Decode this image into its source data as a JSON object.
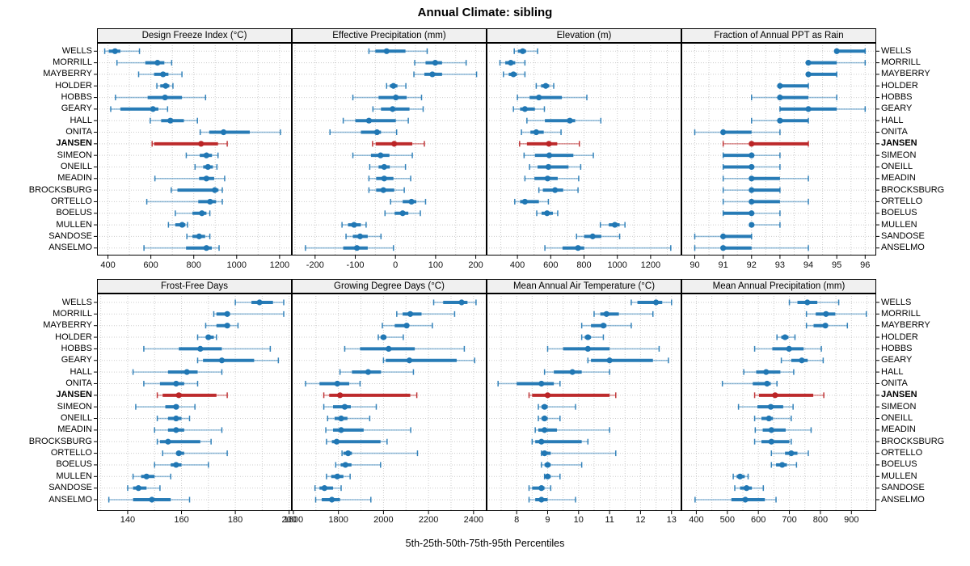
{
  "title": "Annual Climate: sibling",
  "footer": "5th-25th-50th-75th-95th Percentiles",
  "colors": {
    "normal": "#2077b4",
    "highlight": "#bb2426",
    "grid": "#cccccc",
    "strip_bg": "#f0f0f0",
    "border": "#000000"
  },
  "chart_data": {
    "type": "dot-whisker",
    "title": "Annual Climate: sibling",
    "footer": "5th-25th-50th-75th-95th Percentiles",
    "percentiles": [
      5,
      25,
      50,
      75,
      95
    ],
    "legend_position": "none",
    "grid": "dotted",
    "highlight_station": "JANSEN",
    "stations": [
      "WELLS",
      "MORRILL",
      "MAYBERRY",
      "HOLDER",
      "HOBBS",
      "GEARY",
      "HALL",
      "ONITA",
      "JANSEN",
      "SIMEON",
      "ONEILL",
      "MEADIN",
      "BROCKSBURG",
      "ORTELLO",
      "BOELUS",
      "MULLEN",
      "SANDOSE",
      "ANSELMO"
    ],
    "panels": [
      {
        "label": "Design Freeze Index (°C)",
        "grid_row": 1,
        "grid_col": 1,
        "xlim": [
          349,
          1257
        ],
        "ticks": [
          400,
          600,
          800,
          1000,
          1200
        ],
        "minor_step": 100,
        "values": [
          [
            385,
            404,
            433,
            458,
            547
          ],
          [
            442,
            574,
            631,
            663,
            697
          ],
          [
            543,
            615,
            657,
            682,
            745
          ],
          [
            628,
            644,
            669,
            686,
            703
          ],
          [
            435,
            585,
            666,
            745,
            855
          ],
          [
            413,
            458,
            610,
            635,
            678
          ],
          [
            597,
            648,
            691,
            754,
            817
          ],
          [
            830,
            872,
            939,
            1061,
            1204
          ],
          [
            606,
            615,
            834,
            913,
            956
          ],
          [
            765,
            828,
            859,
            885,
            913
          ],
          [
            806,
            844,
            866,
            889,
            908
          ],
          [
            619,
            825,
            859,
            895,
            944
          ],
          [
            695,
            724,
            898,
            915,
            933
          ],
          [
            581,
            821,
            876,
            904,
            933
          ],
          [
            714,
            794,
            838,
            859,
            875
          ],
          [
            682,
            714,
            746,
            761,
            771
          ],
          [
            768,
            794,
            825,
            853,
            875
          ],
          [
            568,
            764,
            859,
            884,
            918
          ]
        ]
      },
      {
        "label": "Effective Precipitation (mm)",
        "grid_row": 1,
        "grid_col": 2,
        "xlim": [
          -258,
          227
        ],
        "ticks": [
          -200,
          -100,
          0,
          100,
          200
        ],
        "minor_step": 50,
        "values": [
          [
            -66,
            -50,
            -22,
            25,
            79
          ],
          [
            48,
            75,
            99,
            116,
            176
          ],
          [
            46,
            72,
            92,
            116,
            202
          ],
          [
            -22,
            -14,
            -5,
            5,
            26
          ],
          [
            -106,
            -42,
            1,
            28,
            65
          ],
          [
            -56,
            -36,
            -7,
            35,
            69
          ],
          [
            -130,
            -100,
            -66,
            1,
            32
          ],
          [
            -163,
            -86,
            -46,
            -36,
            3
          ],
          [
            -57,
            -49,
            -3,
            42,
            72
          ],
          [
            -106,
            -61,
            -37,
            -15,
            42
          ],
          [
            -64,
            -42,
            -28,
            -14,
            25
          ],
          [
            -66,
            -48,
            -28,
            -5,
            38
          ],
          [
            -66,
            -48,
            -30,
            -3,
            22
          ],
          [
            -12,
            18,
            40,
            52,
            75
          ],
          [
            -26,
            -2,
            18,
            32,
            62
          ],
          [
            -133,
            -118,
            -103,
            -86,
            -73
          ],
          [
            -123,
            -106,
            -88,
            -69,
            -36
          ],
          [
            -224,
            -130,
            -96,
            -69,
            -5
          ]
        ]
      },
      {
        "label": "Elevation (m)",
        "grid_row": 1,
        "grid_col": 3,
        "xlim": [
          215,
          1385
        ],
        "ticks": [
          400,
          600,
          800,
          1000,
          1200
        ],
        "minor_step": 100,
        "values": [
          [
            381,
            403,
            432,
            452,
            521
          ],
          [
            295,
            327,
            360,
            387,
            445
          ],
          [
            316,
            348,
            376,
            397,
            445
          ],
          [
            513,
            542,
            570,
            591,
            618
          ],
          [
            400,
            473,
            529,
            667,
            817
          ],
          [
            376,
            416,
            445,
            505,
            562
          ],
          [
            457,
            565,
            715,
            747,
            901
          ],
          [
            424,
            478,
            513,
            558,
            662
          ],
          [
            413,
            457,
            589,
            639,
            772
          ],
          [
            440,
            505,
            591,
            736,
            856
          ],
          [
            473,
            521,
            586,
            707,
            780
          ],
          [
            445,
            502,
            581,
            642,
            768
          ],
          [
            529,
            553,
            626,
            675,
            764
          ],
          [
            384,
            416,
            445,
            529,
            586
          ],
          [
            516,
            545,
            578,
            613,
            642
          ],
          [
            898,
            949,
            985,
            1014,
            1046
          ],
          [
            755,
            801,
            852,
            904,
            1014
          ],
          [
            565,
            671,
            764,
            801,
            1321
          ]
        ]
      },
      {
        "label": "Fraction of Annual PPT as Rain",
        "grid_row": 1,
        "grid_col": 4,
        "xlim": [
          89.53,
          96.39
        ],
        "ticks": [
          90,
          91,
          92,
          93,
          94,
          95,
          96
        ],
        "minor_step": 0.5,
        "values": [
          [
            95,
            95,
            95,
            96,
            96
          ],
          [
            94,
            94,
            94,
            95,
            96
          ],
          [
            94,
            94,
            94,
            95,
            95
          ],
          [
            93,
            93,
            93,
            94,
            94
          ],
          [
            92,
            93,
            93,
            94,
            95
          ],
          [
            93,
            93,
            94,
            95,
            96
          ],
          [
            92,
            93,
            93,
            94,
            94
          ],
          [
            90,
            91,
            91,
            92,
            93
          ],
          [
            91,
            92,
            92,
            94,
            94
          ],
          [
            91,
            91,
            92,
            92,
            93
          ],
          [
            91,
            91,
            92,
            92,
            93
          ],
          [
            91,
            92,
            92,
            93,
            94
          ],
          [
            91,
            92,
            92,
            93,
            93
          ],
          [
            91,
            92,
            92,
            93,
            94
          ],
          [
            91,
            91,
            92,
            92,
            93
          ],
          [
            92,
            92,
            92,
            92,
            93
          ],
          [
            90,
            91,
            91,
            92,
            92
          ],
          [
            90,
            91,
            91,
            92,
            94
          ]
        ]
      },
      {
        "label": "Frost-Free Days",
        "grid_row": 2,
        "grid_col": 1,
        "xlim": [
          128.6,
          201
        ],
        "ticks": [
          140,
          160,
          180,
          200
        ],
        "minor_step": 10,
        "values": [
          [
            180,
            186,
            189,
            194,
            198
          ],
          [
            172,
            173,
            177,
            178,
            198
          ],
          [
            169,
            173,
            177,
            178,
            181
          ],
          [
            166,
            169,
            170,
            172,
            173
          ],
          [
            146,
            159,
            167,
            175,
            193
          ],
          [
            166,
            168,
            175,
            187,
            196
          ],
          [
            142,
            155,
            162,
            166,
            175
          ],
          [
            146,
            152,
            158,
            161,
            166
          ],
          [
            151,
            153,
            159,
            173,
            177
          ],
          [
            143,
            154,
            158,
            159,
            165
          ],
          [
            151,
            155,
            158,
            160,
            163
          ],
          [
            150,
            155,
            158,
            161,
            175
          ],
          [
            151,
            152,
            155,
            167,
            171
          ],
          [
            153,
            158,
            159,
            161,
            177
          ],
          [
            150,
            156,
            158,
            160,
            170
          ],
          [
            142,
            145,
            147,
            150,
            156
          ],
          [
            140,
            142,
            144,
            147,
            152
          ],
          [
            133,
            142,
            149,
            156,
            163
          ]
        ]
      },
      {
        "label": "Growing Degree Days (°C)",
        "grid_row": 2,
        "grid_col": 2,
        "xlim": [
          1593,
          2458
        ],
        "ticks": [
          1600,
          1800,
          2000,
          2200,
          2400
        ],
        "minor_step": 100,
        "values": [
          [
            2223,
            2265,
            2347,
            2373,
            2411
          ],
          [
            2059,
            2085,
            2119,
            2169,
            2316
          ],
          [
            1995,
            2050,
            2103,
            2110,
            2217
          ],
          [
            1977,
            1987,
            2000,
            2013,
            2088
          ],
          [
            1828,
            1896,
            2023,
            2139,
            2359
          ],
          [
            2000,
            2010,
            2115,
            2325,
            2405
          ],
          [
            1807,
            1860,
            1932,
            1989,
            2133
          ],
          [
            1654,
            1716,
            1795,
            1848,
            1896
          ],
          [
            1735,
            1759,
            1807,
            2119,
            2148
          ],
          [
            1735,
            1776,
            1828,
            1855,
            1968
          ],
          [
            1752,
            1783,
            1812,
            1840,
            1939
          ],
          [
            1744,
            1776,
            1812,
            1912,
            2121
          ],
          [
            1747,
            1771,
            1792,
            1987,
            2016
          ],
          [
            1816,
            1822,
            1843,
            1860,
            2151
          ],
          [
            1788,
            1810,
            1831,
            1858,
            1987
          ],
          [
            1747,
            1768,
            1795,
            1822,
            1852
          ],
          [
            1696,
            1716,
            1738,
            1776,
            1812
          ],
          [
            1699,
            1726,
            1771,
            1807,
            1944
          ]
        ]
      },
      {
        "label": "Mean Annual Air Temperature (°C)",
        "grid_row": 2,
        "grid_col": 3,
        "xlim": [
          7.03,
          13.32
        ],
        "ticks": [
          8,
          9,
          10,
          11,
          12,
          13
        ],
        "minor_step": 0.5,
        "values": [
          [
            11.7,
            11.9,
            12.5,
            12.7,
            13.0
          ],
          [
            10.5,
            10.7,
            10.9,
            11.3,
            12.4
          ],
          [
            10.1,
            10.4,
            10.8,
            10.9,
            11.7
          ],
          [
            10.1,
            10.2,
            10.3,
            10.4,
            10.8
          ],
          [
            9.0,
            9.5,
            10.3,
            11.0,
            12.6
          ],
          [
            10.3,
            10.4,
            11.0,
            12.4,
            12.9
          ],
          [
            8.9,
            9.2,
            9.8,
            10.1,
            11.0
          ],
          [
            7.4,
            8.0,
            8.8,
            9.2,
            9.4
          ],
          [
            8.4,
            8.5,
            9.0,
            11.0,
            11.2
          ],
          [
            8.7,
            8.8,
            8.9,
            9.0,
            9.9
          ],
          [
            8.7,
            8.8,
            8.9,
            9.0,
            9.4
          ],
          [
            8.6,
            8.7,
            8.9,
            9.3,
            11.0
          ],
          [
            8.5,
            8.6,
            8.8,
            10.1,
            10.3
          ],
          [
            8.8,
            8.8,
            8.9,
            9.1,
            11.2
          ],
          [
            8.8,
            8.9,
            9.0,
            9.1,
            10.1
          ],
          [
            8.9,
            8.9,
            9.0,
            9.1,
            9.4
          ],
          [
            8.4,
            8.5,
            8.8,
            8.9,
            9.1
          ],
          [
            8.4,
            8.6,
            8.8,
            9.0,
            9.9
          ]
        ]
      },
      {
        "label": "Mean Annual Precipitation (mm)",
        "grid_row": 2,
        "grid_col": 4,
        "xlim": [
          352,
          980
        ],
        "ticks": [
          400,
          500,
          600,
          700,
          800,
          900
        ],
        "minor_step": 50,
        "values": [
          [
            700,
            726,
            758,
            790,
            859
          ],
          [
            755,
            785,
            818,
            848,
            948
          ],
          [
            755,
            778,
            816,
            824,
            887
          ],
          [
            660,
            674,
            686,
            697,
            718
          ],
          [
            588,
            645,
            699,
            746,
            803
          ],
          [
            674,
            706,
            740,
            759,
            809
          ],
          [
            553,
            593,
            625,
            671,
            714
          ],
          [
            484,
            582,
            628,
            640,
            660
          ],
          [
            588,
            602,
            654,
            777,
            811
          ],
          [
            536,
            597,
            640,
            680,
            712
          ],
          [
            588,
            610,
            634,
            647,
            706
          ],
          [
            590,
            614,
            642,
            688,
            770
          ],
          [
            588,
            610,
            642,
            700,
            706
          ],
          [
            642,
            686,
            706,
            726,
            761
          ],
          [
            642,
            657,
            677,
            692,
            723
          ],
          [
            519,
            530,
            541,
            556,
            567
          ],
          [
            524,
            541,
            562,
            579,
            616
          ],
          [
            396,
            513,
            558,
            621,
            657
          ]
        ]
      }
    ]
  }
}
